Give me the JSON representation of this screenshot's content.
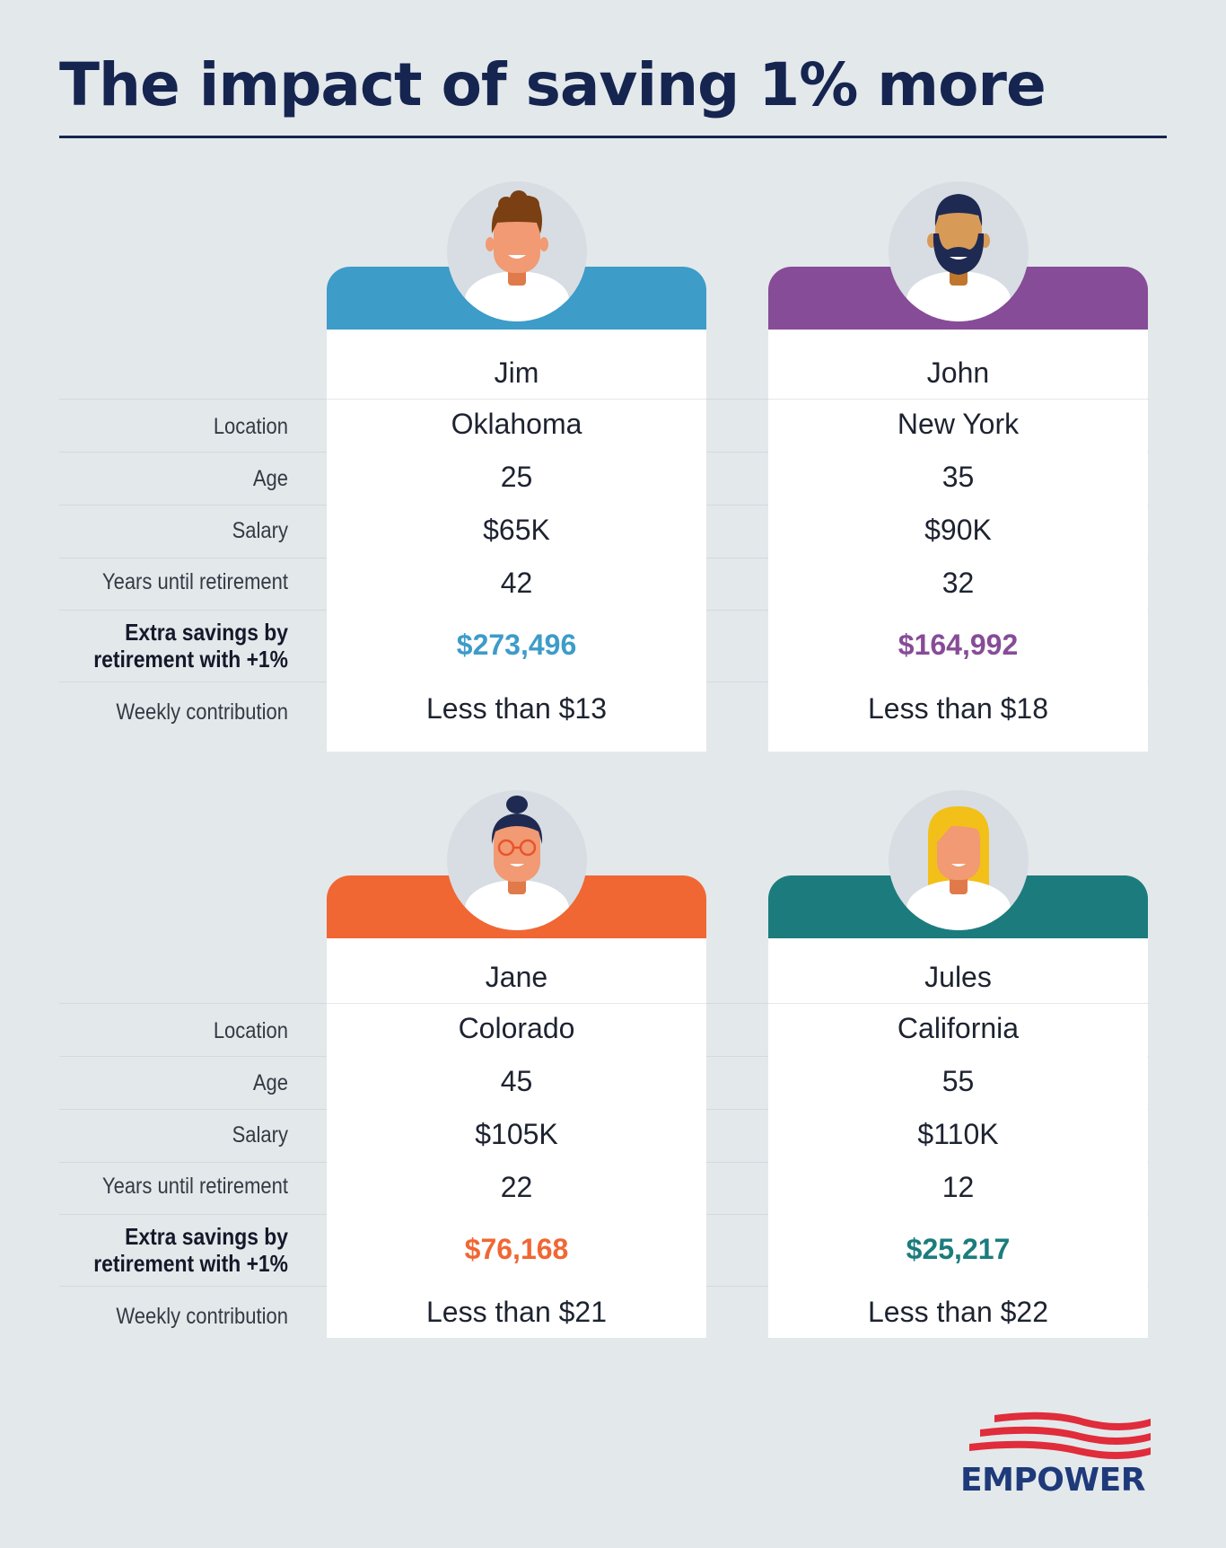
{
  "title": "The impact of saving 1% more",
  "labels": {
    "location": "Location",
    "age": "Age",
    "salary": "Salary",
    "years": "Years until retirement",
    "extra_line1": "Extra savings by",
    "extra_line2": "retirement with +1%",
    "weekly": "Weekly contribution"
  },
  "people": [
    {
      "name": "Jim",
      "location": "Oklahoma",
      "age": "25",
      "salary": "$65K",
      "years": "42",
      "extra": "$273,496",
      "weekly": "Less than $13",
      "color": "#3d9cc8"
    },
    {
      "name": "John",
      "location": "New York",
      "age": "35",
      "salary": "$90K",
      "years": "32",
      "extra": "$164,992",
      "weekly": "Less than $18",
      "color": "#874c97"
    },
    {
      "name": "Jane",
      "location": "Colorado",
      "age": "45",
      "salary": "$105K",
      "years": "22",
      "extra": "$76,168",
      "weekly": "Less than $21",
      "color": "#f06733"
    },
    {
      "name": "Jules",
      "location": "California",
      "age": "55",
      "salary": "$110K",
      "years": "12",
      "extra": "$25,217",
      "weekly": "Less than $22",
      "color": "#1c7c7d"
    }
  ],
  "logo": {
    "text": "EMPOWER",
    "flag_color": "#e02c3b",
    "text_color": "#1e3a7a"
  }
}
